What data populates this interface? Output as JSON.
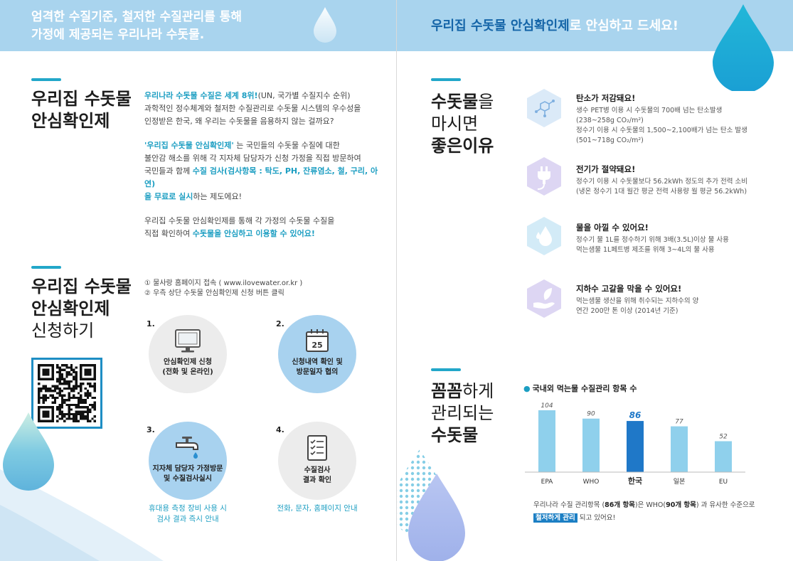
{
  "left_banner": {
    "line1": "엄격한 수질기준, 철저한 수질관리를 통해",
    "line2": "가정에 제공되는 우리나라 수돗물."
  },
  "right_banner": {
    "highlight": "우리집 수돗물 안심확인제",
    "rest": "로 안심하고 드세요!"
  },
  "section1": {
    "heading_line1": "우리집 수돗물",
    "heading_line2": "안심확인제",
    "p1_bold": "우리나라 수돗물 수질은 세계 8위!",
    "p1_rest": "(UN, 국가별 수질지수 순위)",
    "p1_line2": "과학적인 정수체계와 철저한 수질관리로 수돗물 시스템의 우수성을",
    "p1_line3": "인정받은 한국, 왜 우리는 수돗물을 음용하지 않는 걸까요?",
    "p2_quote": "'우리집 수돗물 안심확인제'",
    "p2_a": " 는 국민들의 수돗물 수질에 대한",
    "p2_line2": "불안감 해소를 위해 각 지자체 담당자가 신청 가정을 직접 방문하여",
    "p2_line3a": "국민들과 함께 ",
    "p2_line3b": "수질 검사(검사항목 : 탁도, PH, 잔류염소, 철, 구리, 아연)",
    "p2_line4a": "을 무료로 실시",
    "p2_line4b": "하는 제도에요!",
    "p3_line1": "우리집 수돗물 안심확인제를 통해 각 가정의 수돗물 수질을",
    "p3_line2a": "직접 확인하여 ",
    "p3_line2b": "수돗물을 안심하고 이용할 수 있어요!"
  },
  "section2": {
    "heading_line1": "우리집 수돗물",
    "heading_line2": "안심확인제",
    "heading_line3": "신청하기",
    "instr1": "① 물사랑 홈페이지 접속 ( www.ilovewater.or.kr )",
    "instr2": "② 우측 상단 수돗물 안심확인제 신청 버튼 클릭",
    "steps": [
      {
        "num": "1.",
        "label_line1": "안심확인제 신청",
        "label_line2": "(전화 및 온라인)",
        "icon": "monitor-icon"
      },
      {
        "num": "2.",
        "label_line1": "신청내역 확인 및",
        "label_line2": "방문일자 협의",
        "icon": "calendar-icon",
        "calendar_day": "25"
      },
      {
        "num": "3.",
        "label_line1": "지자체 담당자 가정방문",
        "label_line2": "및 수질검사실시",
        "icon": "faucet-icon",
        "note_line1": "휴대용 측정 장비 사용 시",
        "note_line2": "검사 결과 즉시 안내"
      },
      {
        "num": "4.",
        "label_line1": "수질검사",
        "label_line2": "결과 확인",
        "icon": "checklist-icon",
        "note_line1": "전화, 문자, 홈페이지 안내"
      }
    ]
  },
  "section3": {
    "heading_line1a": "수돗물",
    "heading_line1b": "을",
    "heading_line2": "마시면",
    "heading_line3": "좋은이유",
    "benefits": [
      {
        "icon": "molecule-icon",
        "title": "탄소가 저감돼요!",
        "lines": [
          "생수 PET병 이용 시 수돗물의 700배 넘는 탄소발생",
          "(238~258g CO₂/m²)",
          "정수기 이용 시 수돗물의 1,500~2,100배가 넘는 탄소 발생",
          "(501~718g CO₂/m²)"
        ]
      },
      {
        "icon": "plug-icon",
        "title": "전기가 절약돼요!",
        "lines": [
          "정수기 이용 시 수돗물보다 56.2kWh 정도의 추가 전력 소비",
          "(냉온 정수기 1대 월간 평균 전력 사용량 월 평균 56.2kWh)"
        ]
      },
      {
        "icon": "water-drop-icon",
        "title": "물을 아낄 수 있어요!",
        "lines": [
          "정수기 물 1L를 정수하기 위해 3배(3.5L)이상 물 사용",
          "먹는샘물 1L페트병 제조를 위해 3~4L의 물 사용"
        ]
      },
      {
        "icon": "hand-leaf-icon",
        "title": "지하수 고갈을 막을 수 있어요!",
        "lines": [
          "먹는샘물 생산을 위해 취수되는 지하수의 양",
          "연간 200만 톤 이상 (2014년 기준)"
        ]
      }
    ]
  },
  "section4": {
    "heading_line1a": "꼼꼼",
    "heading_line1b": "하게",
    "heading_line2": "관리되는",
    "heading_line3": "수돗물",
    "caption_a": "우리나라 수질 관리항목 (",
    "caption_b": "86개 항목",
    "caption_c": ")은 WHO(",
    "caption_d": "90개 항목",
    "caption_e": ") 과 유사한 수준으로",
    "caption_chip": "철저하게 관리",
    "caption_f": " 되고 있어요!"
  },
  "chart_data": {
    "type": "bar",
    "title": "국내외 먹는물 수질관리 항목 수",
    "categories": [
      "EPA",
      "WHO",
      "한국",
      "일본",
      "EU"
    ],
    "values": [
      104,
      90,
      86,
      77,
      52
    ],
    "highlight_category": "한국",
    "colors": {
      "bar": "#8fd0ec",
      "highlight": "#1f78c8",
      "highlight_label": "#1f78c8"
    },
    "ylim": [
      0,
      110
    ],
    "grid": false,
    "xlabel": "",
    "ylabel": ""
  }
}
